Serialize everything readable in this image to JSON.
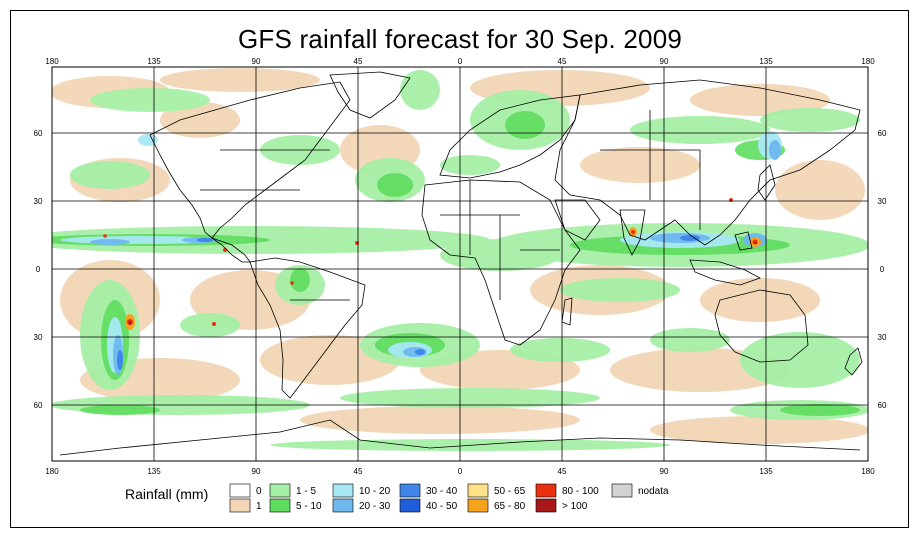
{
  "title": "GFS rainfall forecast for 30 Sep. 2009",
  "map": {
    "lon_labels": [
      "180",
      "135",
      "90",
      "45",
      "0",
      "45",
      "90",
      "135",
      "180"
    ],
    "lat_labels": [
      "60",
      "30",
      "0",
      "30",
      "60"
    ]
  },
  "legend": {
    "title": "Rainfall (mm)",
    "entries": [
      {
        "label": "0",
        "color": "#ffffff"
      },
      {
        "label": "1",
        "color": "#f2d6b5"
      },
      {
        "label": "1 - 5",
        "color": "#a6f0a6"
      },
      {
        "label": "5 - 10",
        "color": "#5fdd5f"
      },
      {
        "label": "10 - 20",
        "color": "#a8e8f4"
      },
      {
        "label": "20 - 30",
        "color": "#6fb8f0"
      },
      {
        "label": "30 - 40",
        "color": "#3f86e8"
      },
      {
        "label": "40 - 50",
        "color": "#1f5ed8"
      },
      {
        "label": "50 - 65",
        "color": "#fde28a"
      },
      {
        "label": "65 - 80",
        "color": "#f6a21c"
      },
      {
        "label": "80 - 100",
        "color": "#e83010"
      },
      {
        "label": "> 100",
        "color": "#a8181a"
      },
      {
        "label": "nodata",
        "color": "#d2d2d2"
      }
    ]
  }
}
